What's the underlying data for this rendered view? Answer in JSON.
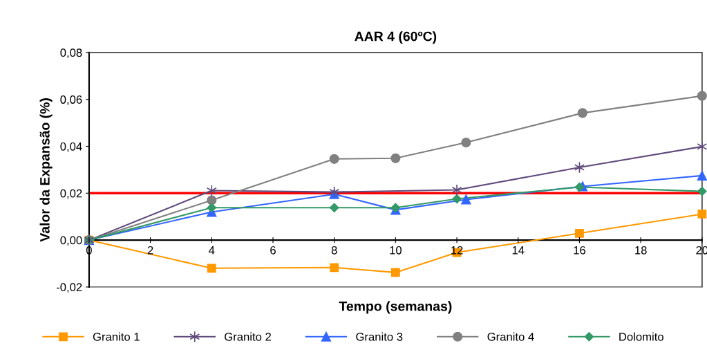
{
  "chart_data": {
    "type": "line",
    "title": "AAR 4 (60ºC)",
    "xlabel": "Tempo (semanas)",
    "ylabel": "Valor da Expansão (%)",
    "xlim": [
      0,
      20
    ],
    "xticks": [
      0,
      2,
      4,
      6,
      8,
      10,
      12,
      14,
      16,
      18,
      20
    ],
    "ylim": [
      -0.02,
      0.08
    ],
    "yticks": [
      {
        "value": -0.02,
        "label": "-0,02"
      },
      {
        "value": 0,
        "label": "0,00"
      },
      {
        "value": 0.02,
        "label": "0,02"
      },
      {
        "value": 0.04,
        "label": "0,04"
      },
      {
        "value": 0.06,
        "label": "0,06"
      },
      {
        "value": 0.08,
        "label": "0,08"
      }
    ],
    "grid": false,
    "legend": "bottom",
    "line_style": "solid",
    "series": [
      {
        "name": "Granito 1",
        "color": "#ff9900",
        "marker": "square",
        "x": [
          0,
          4,
          8,
          10,
          12,
          16,
          20
        ],
        "values": [
          0,
          -0.012,
          -0.0117,
          -0.0138,
          -0.0053,
          0.0029,
          0.0111
        ]
      },
      {
        "name": "Granito 2",
        "color": "#604a7b",
        "marker": "cross",
        "x": [
          0,
          4,
          8,
          12,
          16,
          20
        ],
        "values": [
          0,
          0.0211,
          0.0205,
          0.0214,
          0.031,
          0.0399
        ]
      },
      {
        "name": "Granito 3",
        "color": "#3366ff",
        "marker": "triangle",
        "x": [
          0,
          4,
          8,
          10,
          12.3,
          16.1,
          20
        ],
        "values": [
          0,
          0.012,
          0.0196,
          0.0129,
          0.0173,
          0.0229,
          0.0275
        ]
      },
      {
        "name": "Granito 4",
        "color": "#808080",
        "marker": "circle",
        "x": [
          0,
          4,
          8,
          10,
          12.3,
          16.1,
          20
        ],
        "values": [
          0,
          0.017,
          0.0346,
          0.0349,
          0.0416,
          0.0542,
          0.0615
        ]
      },
      {
        "name": "Dolomito",
        "color": "#339966",
        "marker": "diamond",
        "x": [
          0,
          4,
          8,
          10,
          12,
          16,
          20
        ],
        "values": [
          0,
          0.0138,
          0.0138,
          0.0138,
          0.0176,
          0.0226,
          0.0208
        ]
      }
    ],
    "ref_lines": [
      {
        "axis": "y",
        "value": 0.02,
        "color": "#ff0000",
        "line_style": "solid"
      }
    ]
  }
}
